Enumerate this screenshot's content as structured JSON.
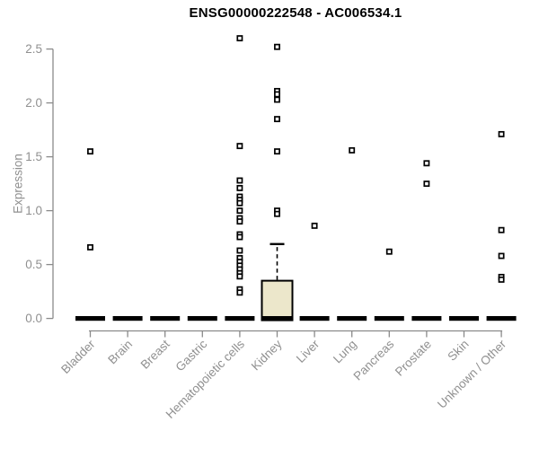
{
  "chart_data": {
    "type": "boxplot",
    "title": "ENSG00000222548 - AC006534.1",
    "ylabel": "Expression",
    "xlabel": "",
    "ylim": [
      0,
      2.5
    ],
    "yticks": [
      0.0,
      0.5,
      1.0,
      1.5,
      2.0,
      2.5
    ],
    "grid": "off",
    "legend": "none",
    "marker_style": "open-square",
    "categories": [
      "Bladder",
      "Brain",
      "Breast",
      "Gastric",
      "Hematopoietic cells",
      "Kidney",
      "Liver",
      "Lung",
      "Pancreas",
      "Prostate",
      "Skin",
      "Unknown / Other"
    ],
    "boxes": [
      {
        "category": "Bladder",
        "whisker_low": 0,
        "q1": 0,
        "median": 0,
        "q3": 0,
        "whisker_high": 0
      },
      {
        "category": "Brain",
        "whisker_low": 0,
        "q1": 0,
        "median": 0,
        "q3": 0,
        "whisker_high": 0
      },
      {
        "category": "Breast",
        "whisker_low": 0,
        "q1": 0,
        "median": 0,
        "q3": 0,
        "whisker_high": 0
      },
      {
        "category": "Gastric",
        "whisker_low": 0,
        "q1": 0,
        "median": 0,
        "q3": 0,
        "whisker_high": 0
      },
      {
        "category": "Hematopoietic cells",
        "whisker_low": 0,
        "q1": 0,
        "median": 0,
        "q3": 0,
        "whisker_high": 0
      },
      {
        "category": "Kidney",
        "whisker_low": 0,
        "q1": 0,
        "median": 0,
        "q3": 0.35,
        "whisker_high": 0.69
      },
      {
        "category": "Liver",
        "whisker_low": 0,
        "q1": 0,
        "median": 0,
        "q3": 0,
        "whisker_high": 0
      },
      {
        "category": "Lung",
        "whisker_low": 0,
        "q1": 0,
        "median": 0,
        "q3": 0,
        "whisker_high": 0
      },
      {
        "category": "Pancreas",
        "whisker_low": 0,
        "q1": 0,
        "median": 0,
        "q3": 0,
        "whisker_high": 0
      },
      {
        "category": "Prostate",
        "whisker_low": 0,
        "q1": 0,
        "median": 0,
        "q3": 0,
        "whisker_high": 0
      },
      {
        "category": "Skin",
        "whisker_low": 0,
        "q1": 0,
        "median": 0,
        "q3": 0,
        "whisker_high": 0
      },
      {
        "category": "Unknown / Other",
        "whisker_low": 0,
        "q1": 0,
        "median": 0,
        "q3": 0,
        "whisker_high": 0
      }
    ],
    "outliers": [
      {
        "category": "Bladder",
        "values": [
          1.55,
          0.66
        ]
      },
      {
        "category": "Brain",
        "values": []
      },
      {
        "category": "Breast",
        "values": []
      },
      {
        "category": "Gastric",
        "values": []
      },
      {
        "category": "Hematopoietic cells",
        "values": [
          2.6,
          1.6,
          1.28,
          1.21,
          1.13,
          1.1,
          1.07,
          1.0,
          0.93,
          0.9,
          0.78,
          0.755,
          0.63,
          0.56,
          0.525,
          0.49,
          0.455,
          0.42,
          0.39,
          0.27,
          0.24
        ]
      },
      {
        "category": "Kidney",
        "values": [
          2.52,
          2.11,
          2.08,
          2.03,
          1.85,
          1.55,
          1.0,
          0.97
        ]
      },
      {
        "category": "Liver",
        "values": [
          0.86
        ]
      },
      {
        "category": "Lung",
        "values": [
          1.56
        ]
      },
      {
        "category": "Pancreas",
        "values": [
          0.62
        ]
      },
      {
        "category": "Prostate",
        "values": [
          1.44,
          1.25
        ]
      },
      {
        "category": "Skin",
        "values": []
      },
      {
        "category": "Unknown / Other",
        "values": [
          1.71,
          0.82,
          0.58,
          0.385,
          0.36
        ]
      }
    ],
    "colors": {
      "box_fill": "#ECE7CB",
      "box_border": "#000000",
      "median_bar": "#000000",
      "whisker": "#000000",
      "marker_stroke": "#000000",
      "marker_fill": "#ffffff",
      "axis_line": "#8a8a8a",
      "tick_text": "#909090",
      "title_text": "#000000",
      "background": "#ffffff"
    }
  }
}
